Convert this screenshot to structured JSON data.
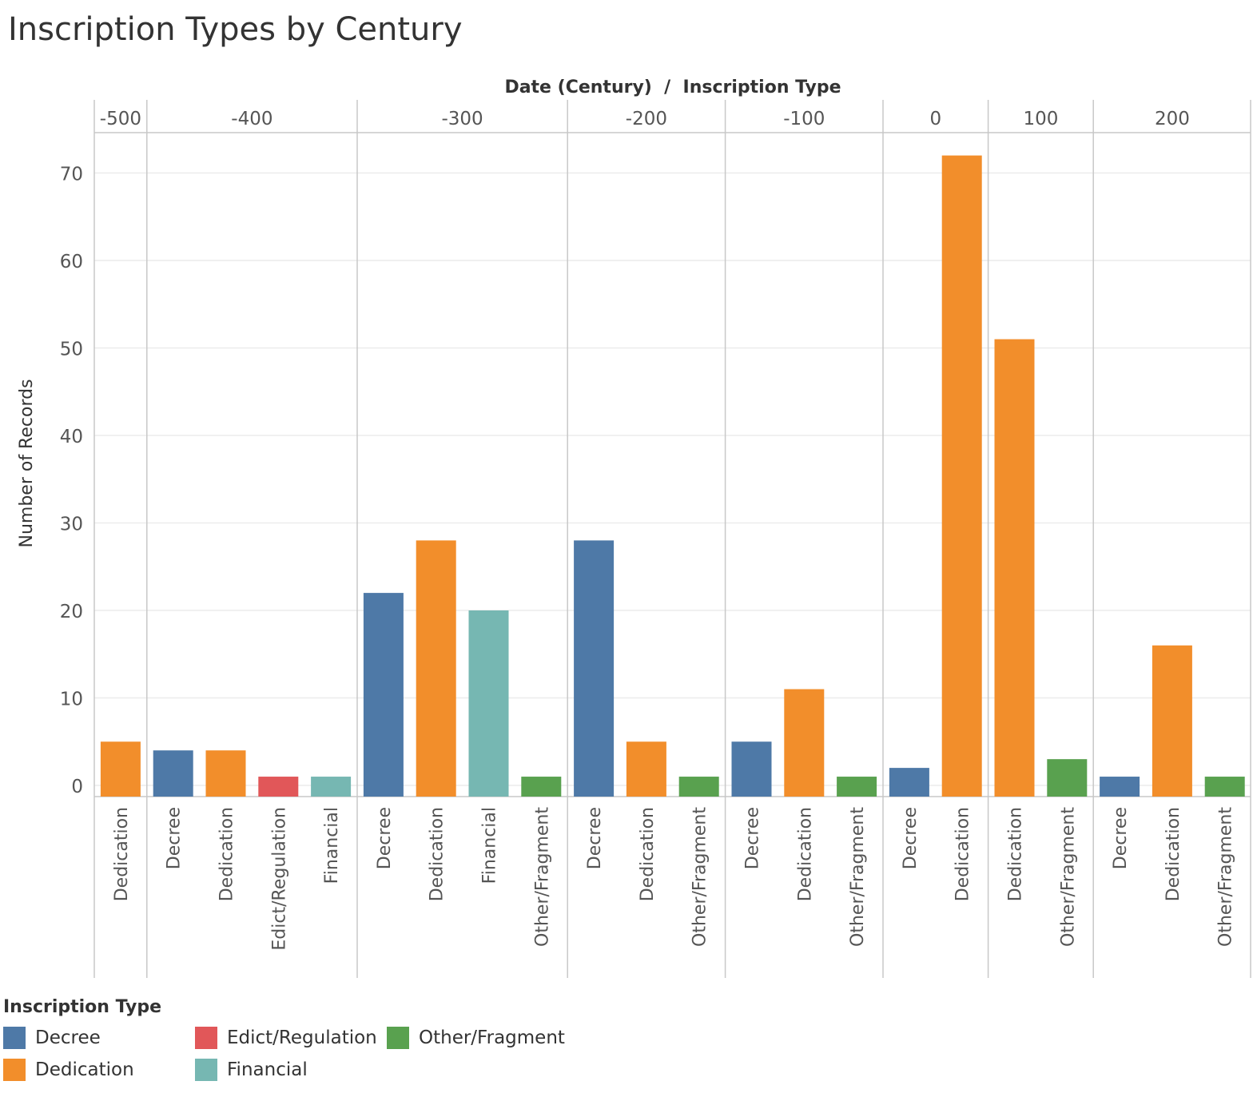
{
  "title": "Inscription Types by Century",
  "colors": {
    "Decree": "#4e79a7",
    "Dedication": "#f28e2b",
    "Edict/Regulation": "#e15759",
    "Financial": "#76b7b2",
    "Other/Fragment": "#59a14f"
  },
  "legend": {
    "title": "Inscription Type",
    "items": [
      {
        "label": "Decree",
        "color": "#4e79a7"
      },
      {
        "label": "Dedication",
        "color": "#f28e2b"
      },
      {
        "label": "Edict/Regulation",
        "color": "#e15759"
      },
      {
        "label": "Financial",
        "color": "#76b7b2"
      },
      {
        "label": "Other/Fragment",
        "color": "#59a14f"
      }
    ]
  },
  "chart_data": {
    "type": "bar",
    "title": "Inscription Types by Century",
    "header_label": "Date (Century)  /  Inscription Type",
    "ylabel": "Number of Records",
    "ylim": [
      0,
      75
    ],
    "yticks": [
      0,
      10,
      20,
      30,
      40,
      50,
      60,
      70
    ],
    "grid": true,
    "groups": [
      {
        "century": "-500",
        "bars": [
          {
            "type": "Dedication",
            "value": 5
          }
        ]
      },
      {
        "century": "-400",
        "bars": [
          {
            "type": "Decree",
            "value": 4
          },
          {
            "type": "Dedication",
            "value": 4
          },
          {
            "type": "Edict/Regulation",
            "value": 1
          },
          {
            "type": "Financial",
            "value": 1
          }
        ]
      },
      {
        "century": "-300",
        "bars": [
          {
            "type": "Decree",
            "value": 22
          },
          {
            "type": "Dedication",
            "value": 28
          },
          {
            "type": "Financial",
            "value": 20
          },
          {
            "type": "Other/Fragment",
            "value": 1
          }
        ]
      },
      {
        "century": "-200",
        "bars": [
          {
            "type": "Decree",
            "value": 28
          },
          {
            "type": "Dedication",
            "value": 5
          },
          {
            "type": "Other/Fragment",
            "value": 1
          }
        ]
      },
      {
        "century": "-100",
        "bars": [
          {
            "type": "Decree",
            "value": 5
          },
          {
            "type": "Dedication",
            "value": 11
          },
          {
            "type": "Other/Fragment",
            "value": 1
          }
        ]
      },
      {
        "century": "0",
        "bars": [
          {
            "type": "Decree",
            "value": 2
          },
          {
            "type": "Dedication",
            "value": 72
          }
        ]
      },
      {
        "century": "100",
        "bars": [
          {
            "type": "Dedication",
            "value": 51
          },
          {
            "type": "Other/Fragment",
            "value": 3
          }
        ]
      },
      {
        "century": "200",
        "bars": [
          {
            "type": "Decree",
            "value": 1
          },
          {
            "type": "Dedication",
            "value": 16
          },
          {
            "type": "Other/Fragment",
            "value": 1
          }
        ]
      }
    ]
  }
}
